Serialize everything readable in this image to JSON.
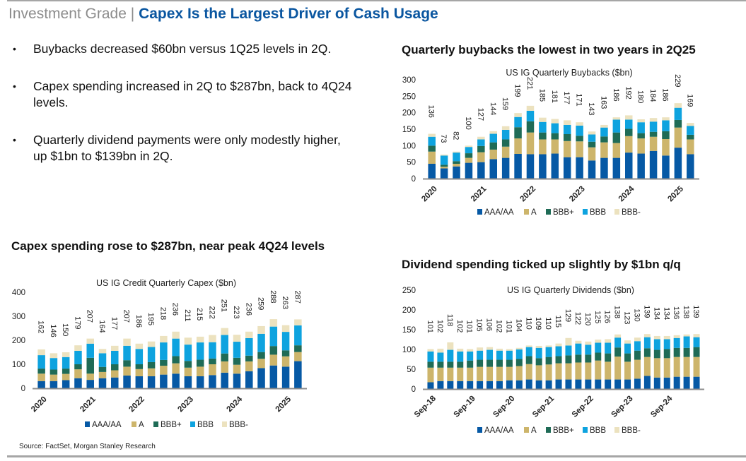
{
  "header": {
    "prefix": "Investment Grade",
    "separator": "|",
    "title": "Capex Is the Largest Driver of Cash Usage"
  },
  "bullets": [
    "Buybacks decreased $60bn versus 1Q25 levels in 2Q.",
    "Capex spending increased in 2Q to $287bn, back to 4Q24 levels.",
    "Quarterly dividend payments were only modestly higher, up $1bn to $139bn in 2Q."
  ],
  "headlines": {
    "buybacks": "Quarterly buybacks the lowest in two years in 2Q25",
    "capex": "Capex spending rose to $287bn, near peak 4Q24 levels",
    "dividends": "Dividend spending ticked up slightly by $1bn q/q"
  },
  "colors": {
    "AAA/AA": "#0659a5",
    "A": "#cdb56b",
    "BBB+": "#1f6b56",
    "BBB": "#0ea3df",
    "BBB-": "#ece2bf",
    "title_accent": "#0a56a0"
  },
  "source": "Source: FactSet, Morgan Stanley Research",
  "chart_data": [
    {
      "id": "buybacks",
      "type": "bar",
      "stacked": true,
      "title": "US IG Quarterly Buybacks ($bn)",
      "xlabel": "",
      "ylabel": "",
      "ylim": [
        0,
        300
      ],
      "yticks": [
        0,
        50,
        100,
        150,
        200,
        250,
        300
      ],
      "x_tick_labels": [
        {
          "index": 0,
          "label": "2020"
        },
        {
          "index": 4,
          "label": "2021"
        },
        {
          "index": 8,
          "label": "2022"
        },
        {
          "index": 12,
          "label": "2023"
        },
        {
          "index": 16,
          "label": "2024"
        },
        {
          "index": 20,
          "label": "2025"
        }
      ],
      "legend": [
        "AAA/AA",
        "A",
        "BBB+",
        "BBB",
        "BBB-"
      ],
      "legend_position": "bottom",
      "totals": [
        136,
        73,
        82,
        100,
        127,
        144,
        159,
        199,
        221,
        185,
        181,
        177,
        171,
        143,
        163,
        186,
        192,
        180,
        184,
        186,
        229,
        169
      ],
      "series": [
        {
          "name": "AAA/AA",
          "values": [
            45,
            31,
            37,
            48,
            50,
            59,
            63,
            75,
            74,
            74,
            76,
            65,
            65,
            55,
            63,
            63,
            79,
            76,
            84,
            70,
            94,
            74
          ]
        },
        {
          "name": "A",
          "values": [
            37,
            5,
            8,
            15,
            30,
            29,
            34,
            47,
            66,
            45,
            43,
            49,
            48,
            40,
            47,
            45,
            50,
            46,
            43,
            50,
            61,
            45
          ]
        },
        {
          "name": "BBB+",
          "values": [
            18,
            6,
            8,
            14,
            19,
            22,
            22,
            34,
            34,
            21,
            19,
            21,
            17,
            17,
            18,
            32,
            22,
            16,
            15,
            24,
            23,
            14
          ]
        },
        {
          "name": "BBB",
          "values": [
            27,
            28,
            26,
            19,
            20,
            26,
            29,
            31,
            32,
            32,
            30,
            28,
            31,
            22,
            27,
            39,
            28,
            33,
            31,
            33,
            37,
            27
          ]
        },
        {
          "name": "BBB-",
          "values": [
            9,
            3,
            3,
            4,
            8,
            8,
            11,
            12,
            15,
            13,
            13,
            14,
            10,
            9,
            8,
            7,
            13,
            9,
            11,
            9,
            14,
            9
          ]
        }
      ]
    },
    {
      "id": "capex",
      "type": "bar",
      "stacked": true,
      "title": "US IG Credit Quarterly Capex ($bn)",
      "xlabel": "",
      "ylabel": "",
      "ylim": [
        0,
        400
      ],
      "yticks": [
        0,
        100,
        200,
        300,
        400
      ],
      "x_tick_labels": [
        {
          "index": 0,
          "label": "2020"
        },
        {
          "index": 4,
          "label": "2021"
        },
        {
          "index": 8,
          "label": "2022"
        },
        {
          "index": 12,
          "label": "2023"
        },
        {
          "index": 16,
          "label": "2024"
        },
        {
          "index": 20,
          "label": "2025"
        }
      ],
      "legend": [
        "AAA/AA",
        "A",
        "BBB+",
        "BBB",
        "BBB-"
      ],
      "legend_position": "bottom",
      "totals": [
        162,
        146,
        150,
        179,
        207,
        164,
        177,
        207,
        186,
        195,
        218,
        236,
        211,
        215,
        222,
        251,
        223,
        236,
        259,
        288,
        263,
        287
      ],
      "series": [
        {
          "name": "AAA/AA",
          "values": [
            30,
            30,
            34,
            42,
            35,
            42,
            45,
            53,
            50,
            50,
            57,
            61,
            50,
            50,
            55,
            65,
            61,
            71,
            84,
            95,
            90,
            113
          ]
        },
        {
          "name": "A",
          "values": [
            31,
            27,
            26,
            37,
            26,
            26,
            30,
            37,
            30,
            33,
            37,
            43,
            36,
            40,
            45,
            47,
            37,
            41,
            39,
            45,
            43,
            38
          ]
        },
        {
          "name": "BBB+",
          "values": [
            21,
            21,
            22,
            21,
            66,
            21,
            25,
            27,
            20,
            26,
            24,
            30,
            28,
            29,
            24,
            33,
            29,
            24,
            28,
            36,
            25,
            28
          ]
        },
        {
          "name": "BBB",
          "values": [
            56,
            48,
            48,
            56,
            59,
            57,
            56,
            60,
            64,
            63,
            73,
            73,
            68,
            72,
            68,
            77,
            67,
            73,
            76,
            81,
            77,
            83
          ]
        },
        {
          "name": "BBB-",
          "values": [
            24,
            20,
            20,
            23,
            21,
            18,
            21,
            30,
            22,
            23,
            27,
            29,
            29,
            24,
            30,
            29,
            29,
            27,
            32,
            31,
            28,
            25
          ]
        }
      ]
    },
    {
      "id": "dividends",
      "type": "bar",
      "stacked": true,
      "title": "US IG Quarterly Dividends ($bn)",
      "xlabel": "",
      "ylabel": "",
      "ylim": [
        0,
        250
      ],
      "yticks": [
        0,
        50,
        100,
        150,
        200,
        250
      ],
      "x_tick_labels": [
        {
          "index": 0,
          "label": "Sep-18"
        },
        {
          "index": 4,
          "label": "Sep-19"
        },
        {
          "index": 8,
          "label": "Sep-20"
        },
        {
          "index": 12,
          "label": "Sep-21"
        },
        {
          "index": 16,
          "label": "Sep-22"
        },
        {
          "index": 20,
          "label": "Sep-23"
        },
        {
          "index": 24,
          "label": "Sep-24"
        }
      ],
      "legend": [
        "AAA/AA",
        "A",
        "BBB+",
        "BBB",
        "BBB-"
      ],
      "legend_position": "bottom",
      "totals": [
        101,
        102,
        118,
        102,
        101,
        105,
        106,
        102,
        101,
        104,
        110,
        109,
        110,
        115,
        129,
        122,
        120,
        125,
        126,
        138,
        123,
        130,
        139,
        134,
        134,
        136,
        138,
        139
      ],
      "series": [
        {
          "name": "AAA/AA",
          "values": [
            17,
            20,
            20,
            20,
            20,
            20,
            20,
            20,
            22,
            22,
            24,
            22,
            22,
            24,
            24,
            24,
            24,
            24,
            24,
            24,
            24,
            26,
            33,
            29,
            29,
            31,
            31,
            31
          ]
        },
        {
          "name": "A",
          "values": [
            37,
            34,
            34,
            34,
            34,
            36,
            36,
            36,
            34,
            36,
            39,
            38,
            40,
            41,
            41,
            43,
            43,
            48,
            45,
            58,
            45,
            48,
            48,
            49,
            49,
            50,
            50,
            50
          ]
        },
        {
          "name": "BBB+",
          "values": [
            15,
            15,
            15,
            15,
            18,
            18,
            18,
            18,
            18,
            18,
            20,
            18,
            19,
            18,
            20,
            20,
            20,
            20,
            21,
            23,
            21,
            23,
            22,
            21,
            23,
            23,
            23,
            25
          ]
        },
        {
          "name": "BBB",
          "values": [
            26,
            23,
            30,
            26,
            23,
            23,
            25,
            23,
            23,
            24,
            23,
            26,
            25,
            25,
            25,
            28,
            25,
            25,
            27,
            25,
            25,
            24,
            28,
            27,
            25,
            25,
            29,
            25
          ]
        },
        {
          "name": "BBB-",
          "values": [
            6,
            10,
            19,
            7,
            6,
            8,
            7,
            5,
            4,
            4,
            4,
            5,
            4,
            7,
            19,
            7,
            8,
            8,
            9,
            8,
            8,
            9,
            8,
            8,
            8,
            7,
            5,
            8
          ]
        }
      ]
    }
  ]
}
